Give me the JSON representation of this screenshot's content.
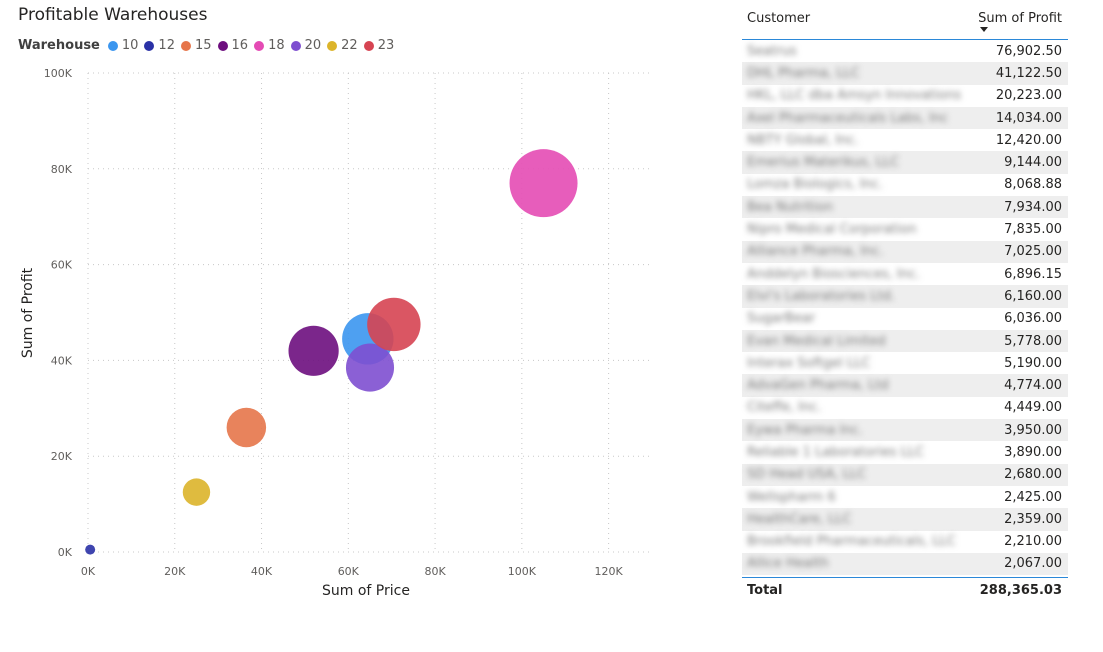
{
  "chart_data": {
    "type": "scatter",
    "title": "Profitable Warehouses",
    "legend_title": "Warehouse",
    "legend_position": "top-left",
    "xlabel": "Sum of Price",
    "ylabel": "Sum of Profit",
    "xlim": [
      0,
      130000
    ],
    "ylim": [
      0,
      100000
    ],
    "x_ticks": [
      {
        "value": 0,
        "label": "0K"
      },
      {
        "value": 20000,
        "label": "20K"
      },
      {
        "value": 40000,
        "label": "40K"
      },
      {
        "value": 60000,
        "label": "60K"
      },
      {
        "value": 80000,
        "label": "80K"
      },
      {
        "value": 100000,
        "label": "100K"
      },
      {
        "value": 120000,
        "label": "120K"
      }
    ],
    "y_ticks": [
      {
        "value": 0,
        "label": "0K"
      },
      {
        "value": 20000,
        "label": "20K"
      },
      {
        "value": 40000,
        "label": "40K"
      },
      {
        "value": 60000,
        "label": "60K"
      },
      {
        "value": 80000,
        "label": "80K"
      },
      {
        "value": 100000,
        "label": "100K"
      }
    ],
    "grid": true,
    "series": [
      {
        "name": "10",
        "color": "#3b96ef",
        "x": 64500,
        "y": 44500,
        "size": 44000
      },
      {
        "name": "12",
        "color": "#2a31a6",
        "x": 500,
        "y": 500,
        "size": 500
      },
      {
        "name": "15",
        "color": "#e6754a",
        "x": 36500,
        "y": 26000,
        "size": 26000
      },
      {
        "name": "16",
        "color": "#6d0e7e",
        "x": 52000,
        "y": 42000,
        "size": 42000
      },
      {
        "name": "18",
        "color": "#e44bb4",
        "x": 105000,
        "y": 77000,
        "size": 77000
      },
      {
        "name": "20",
        "color": "#7e4fd0",
        "x": 65000,
        "y": 38500,
        "size": 38500
      },
      {
        "name": "22",
        "color": "#dcb42a",
        "x": 25000,
        "y": 12500,
        "size": 12500
      },
      {
        "name": "23",
        "color": "#d64452",
        "x": 70500,
        "y": 47500,
        "size": 47500
      }
    ]
  },
  "table": {
    "col_customer": "Customer",
    "col_profit": "Sum of Profit",
    "rows": [
      {
        "customer": "Seatrus",
        "profit": "76,902.50"
      },
      {
        "customer": "DHL Pharma, LLC",
        "profit": "41,122.50"
      },
      {
        "customer": "HKL, LLC dba Amsyn Innovations",
        "profit": "20,223.00"
      },
      {
        "customer": "Axel Pharmaceuticals Labs, Inc",
        "profit": "14,034.00"
      },
      {
        "customer": "NBTY Global, Inc.",
        "profit": "12,420.00"
      },
      {
        "customer": "Emerius Materikus, LLC",
        "profit": "9,144.00"
      },
      {
        "customer": "Lomza Biologics, Inc.",
        "profit": "8,068.88"
      },
      {
        "customer": "Bea Nutrition",
        "profit": "7,934.00"
      },
      {
        "customer": "Nipro Medical Corporation",
        "profit": "7,835.00"
      },
      {
        "customer": "Alliance Pharma, Inc.",
        "profit": "7,025.00"
      },
      {
        "customer": "Anddelyn Biosciences, Inc.",
        "profit": "6,896.15"
      },
      {
        "customer": "Elvi's Laboratories Ltd.",
        "profit": "6,160.00"
      },
      {
        "customer": "SugarBear",
        "profit": "6,036.00"
      },
      {
        "customer": "Evan Medical Limited",
        "profit": "5,778.00"
      },
      {
        "customer": "Interax Softgel LLC",
        "profit": "5,190.00"
      },
      {
        "customer": "AdvaGen Pharma, Ltd",
        "profit": "4,774.00"
      },
      {
        "customer": "Citeffe, Inc.",
        "profit": "4,449.00"
      },
      {
        "customer": "Eywa Pharma Inc.",
        "profit": "3,950.00"
      },
      {
        "customer": "Reliable 1 Laboratories LLC",
        "profit": "3,890.00"
      },
      {
        "customer": "SD Head USA, LLC",
        "profit": "2,680.00"
      },
      {
        "customer": "Wellspharm 6",
        "profit": "2,425.00"
      },
      {
        "customer": "HealthCare, LLC",
        "profit": "2,359.00"
      },
      {
        "customer": "Brookfield Pharmaceuticals, LLC",
        "profit": "2,210.00"
      },
      {
        "customer": "Allice Health",
        "profit": "2,067.00"
      }
    ],
    "total_label": "Total",
    "total_value": "288,365.03"
  }
}
